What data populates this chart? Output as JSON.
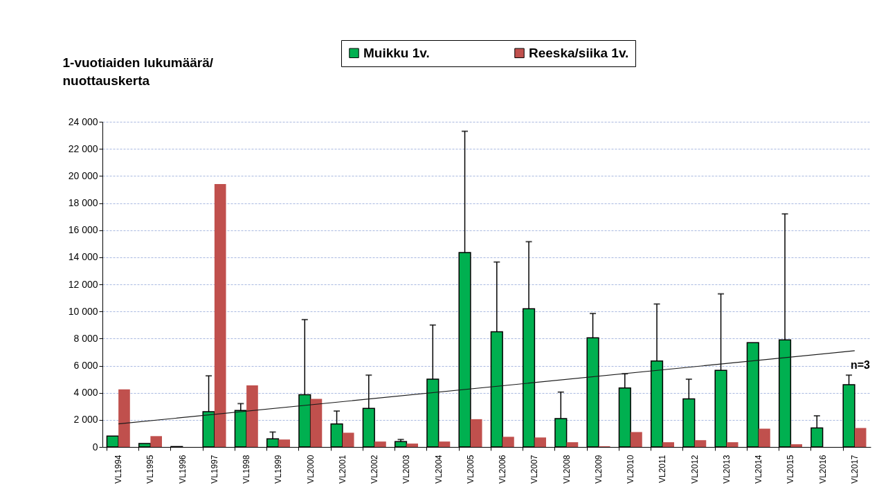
{
  "chart_data": {
    "type": "bar",
    "ylabel": "1-vuotiaiden lukumäärä/\nnuottauskerta",
    "categories": [
      "VL1994",
      "VL1995",
      "VL1996",
      "VL1997",
      "VL1998",
      "VL1999",
      "VL2000",
      "VL2001",
      "VL2002",
      "VL2003",
      "VL2004",
      "VL2005",
      "VL2006",
      "VL2007",
      "VL2008",
      "VL2009",
      "VL2010",
      "VL2011",
      "VL2012",
      "VL2013",
      "VL2014",
      "VL2015",
      "VL2016",
      "VL2017"
    ],
    "series": [
      {
        "name": "Muikku 1v.",
        "color": "#00b050",
        "values": [
          800,
          250,
          30,
          2600,
          2700,
          600,
          3850,
          1700,
          2850,
          400,
          5000,
          14350,
          8500,
          10200,
          2100,
          8050,
          4350,
          6350,
          3550,
          5650,
          7700,
          7900,
          1400,
          4600
        ],
        "errors": [
          null,
          null,
          null,
          [
            2600,
            5250
          ],
          [
            2700,
            3200
          ],
          [
            600,
            1100
          ],
          [
            3850,
            9400
          ],
          [
            1700,
            2650
          ],
          [
            2850,
            5300
          ],
          [
            400,
            550
          ],
          [
            5000,
            9000
          ],
          [
            14350,
            23300
          ],
          [
            8500,
            13650
          ],
          [
            10200,
            15150
          ],
          [
            2100,
            4050
          ],
          [
            8050,
            9850
          ],
          [
            4350,
            5400
          ],
          [
            6350,
            10550
          ],
          [
            3550,
            5000
          ],
          [
            5650,
            11300
          ],
          null,
          [
            7900,
            17200
          ],
          [
            1400,
            2300
          ],
          [
            4600,
            5300
          ]
        ]
      },
      {
        "name": "Reeska/siika 1v.",
        "color": "#c0504d",
        "values": [
          4250,
          800,
          null,
          19400,
          4550,
          550,
          3550,
          1050,
          400,
          250,
          400,
          2050,
          750,
          700,
          350,
          50,
          1100,
          350,
          500,
          350,
          1350,
          200,
          null,
          1400
        ]
      },
      {
        "type": "line",
        "x": [
          "VL1994",
          "VL2017"
        ],
        "values": [
          1700,
          7100
        ],
        "color": "#1a1a1a"
      }
    ],
    "ylim": [
      0,
      24000
    ],
    "yticks": [
      0,
      {
        "value": 2000,
        "label": "2 000"
      },
      {
        "value": 4000,
        "label": "4 000"
      },
      {
        "value": 6000,
        "label": "6 000"
      },
      {
        "value": 8000,
        "label": "8 000"
      },
      {
        "value": 10000,
        "label": "10 000"
      },
      {
        "value": 12000,
        "label": "12 000"
      },
      {
        "value": 14000,
        "label": "14 000"
      },
      {
        "value": 16000,
        "label": "16 000"
      },
      {
        "value": 18000,
        "label": "18 000"
      },
      {
        "value": 20000,
        "label": "20 000"
      },
      {
        "value": 22000,
        "label": "22 000"
      },
      {
        "value": 24000,
        "label": "24 000"
      }
    ],
    "grid": "y",
    "legend": "top right",
    "annotations": [
      "n=3"
    ]
  }
}
